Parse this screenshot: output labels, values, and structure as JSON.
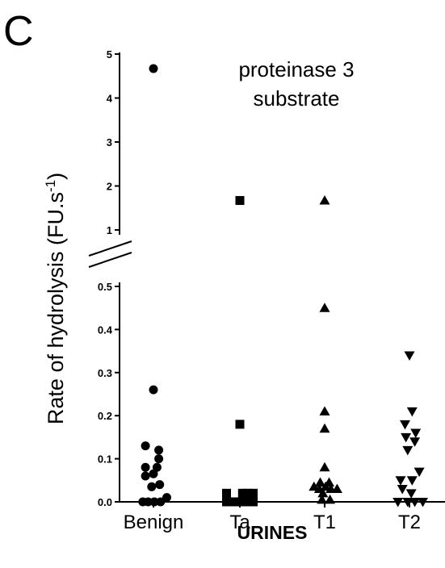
{
  "panel_label": "C",
  "chart_data": {
    "type": "scatter",
    "title": "proteinase 3\nsubstrate",
    "xlabel": "URINES",
    "ylabel": "Rate of hydrolysis (FU.s-1)",
    "categories": [
      "Benign",
      "Ta",
      "T1",
      "T2"
    ],
    "y_axis_broken": true,
    "y_axis_upper_range": [
      1,
      5
    ],
    "y_axis_lower_range": [
      0,
      0.5
    ],
    "y_ticks_upper": [
      "1",
      "2",
      "3",
      "4",
      "5"
    ],
    "y_ticks_lower": [
      "0.0",
      "0.1",
      "0.2",
      "0.3",
      "0.4",
      "0.5"
    ],
    "grid": false,
    "series": [
      {
        "category": "Benign",
        "marker": "circle",
        "points": [
          {
            "dx": 0,
            "y": 4.67
          },
          {
            "dx": 0,
            "y": 0.26
          },
          {
            "dx": -0.45,
            "y": 0.13
          },
          {
            "dx": 0.3,
            "y": 0.12
          },
          {
            "dx": 0.3,
            "y": 0.1
          },
          {
            "dx": -0.45,
            "y": 0.08
          },
          {
            "dx": -0.45,
            "y": 0.06
          },
          {
            "dx": 0,
            "y": 0.065
          },
          {
            "dx": 0.2,
            "y": 0.08
          },
          {
            "dx": -0.1,
            "y": 0.035
          },
          {
            "dx": 0.35,
            "y": 0.04
          },
          {
            "dx": 0.75,
            "y": 0.01
          },
          {
            "dx": -0.6,
            "y": 0.0
          },
          {
            "dx": -0.3,
            "y": 0.0
          },
          {
            "dx": 0.05,
            "y": 0.0
          },
          {
            "dx": 0.4,
            "y": 0.0
          }
        ]
      },
      {
        "category": "Ta",
        "marker": "square",
        "points": [
          {
            "dx": 0,
            "y": 1.67
          },
          {
            "dx": 0,
            "y": 0.18
          },
          {
            "dx": -0.75,
            "y": 0.02
          },
          {
            "dx": 0.15,
            "y": 0.02
          },
          {
            "dx": 0.45,
            "y": 0.02
          },
          {
            "dx": 0.75,
            "y": 0.02
          },
          {
            "dx": -0.75,
            "y": 0.0
          },
          {
            "dx": -0.45,
            "y": 0.0
          },
          {
            "dx": -0.15,
            "y": 0.0
          },
          {
            "dx": 0.15,
            "y": 0.0
          },
          {
            "dx": 0.45,
            "y": 0.0
          },
          {
            "dx": 0.75,
            "y": 0.0
          }
        ]
      },
      {
        "category": "T1",
        "marker": "triangle-up",
        "points": [
          {
            "dx": 0,
            "y": 1.67
          },
          {
            "dx": 0,
            "y": 0.45
          },
          {
            "dx": 0,
            "y": 0.21
          },
          {
            "dx": 0,
            "y": 0.17
          },
          {
            "dx": 0,
            "y": 0.08
          },
          {
            "dx": -0.25,
            "y": 0.045
          },
          {
            "dx": 0.25,
            "y": 0.045
          },
          {
            "dx": -0.6,
            "y": 0.035
          },
          {
            "dx": -0.3,
            "y": 0.03
          },
          {
            "dx": 0.05,
            "y": 0.035
          },
          {
            "dx": 0.35,
            "y": 0.03
          },
          {
            "dx": 0.7,
            "y": 0.03
          },
          {
            "dx": -0.1,
            "y": 0.02
          },
          {
            "dx": -0.15,
            "y": 0.005
          },
          {
            "dx": 0.3,
            "y": 0.005
          }
        ]
      },
      {
        "category": "T2",
        "marker": "triangle-down",
        "points": [
          {
            "dx": 0,
            "y": 0.34
          },
          {
            "dx": 0.15,
            "y": 0.21
          },
          {
            "dx": -0.25,
            "y": 0.18
          },
          {
            "dx": 0.35,
            "y": 0.16
          },
          {
            "dx": -0.2,
            "y": 0.15
          },
          {
            "dx": 0.3,
            "y": 0.14
          },
          {
            "dx": -0.1,
            "y": 0.12
          },
          {
            "dx": 0.55,
            "y": 0.07
          },
          {
            "dx": -0.5,
            "y": 0.05
          },
          {
            "dx": 0.15,
            "y": 0.05
          },
          {
            "dx": -0.4,
            "y": 0.03
          },
          {
            "dx": 0.1,
            "y": 0.02
          },
          {
            "dx": -0.65,
            "y": 0.0
          },
          {
            "dx": -0.1,
            "y": 0.0
          },
          {
            "dx": 0.3,
            "y": 0.0
          },
          {
            "dx": 0.75,
            "y": 0.0
          }
        ]
      }
    ]
  }
}
